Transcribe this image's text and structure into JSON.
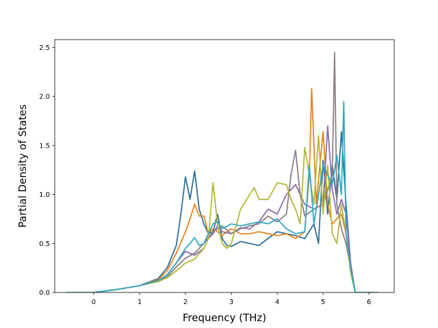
{
  "chart_data": {
    "type": "line",
    "title": "",
    "xlabel": "Frequency (THz)",
    "ylabel": "Partial Density of States",
    "xlim": [
      -0.85,
      6.55
    ],
    "ylim": [
      0.0,
      2.58
    ],
    "xticks": [
      0,
      1,
      2,
      3,
      4,
      5,
      6
    ],
    "xtick_labels": [
      "0",
      "1",
      "2",
      "3",
      "4",
      "5",
      "6"
    ],
    "yticks": [
      0.0,
      0.5,
      1.0,
      1.5,
      2.0,
      2.5
    ],
    "ytick_labels": [
      "0.0",
      "0.5",
      "1.0",
      "1.5",
      "2.0",
      "2.5"
    ],
    "grid": false,
    "legend": "none",
    "series": [
      {
        "color": "#2c6f9b",
        "x": [
          -0.6,
          0,
          0.5,
          1,
          1.4,
          1.6,
          1.8,
          1.9,
          2.0,
          2.1,
          2.2,
          2.3,
          2.4,
          2.5,
          2.6,
          2.7,
          2.8,
          2.9,
          3.0,
          3.2,
          3.4,
          3.6,
          3.8,
          4.0,
          4.2,
          4.4,
          4.6,
          4.8,
          4.9,
          5.0,
          5.1,
          5.2,
          5.3,
          5.4,
          5.5,
          5.6,
          5.7,
          6.2
        ],
        "y": [
          0,
          0,
          0.03,
          0.07,
          0.14,
          0.25,
          0.48,
          0.8,
          1.18,
          0.95,
          1.24,
          0.85,
          0.7,
          0.6,
          0.62,
          0.8,
          0.55,
          0.48,
          0.47,
          0.52,
          0.5,
          0.48,
          0.55,
          0.62,
          0.6,
          0.58,
          0.55,
          0.7,
          0.5,
          1.35,
          0.8,
          1.3,
          0.95,
          1.64,
          0.9,
          0.3,
          0,
          0
        ]
      },
      {
        "color": "#e8821e",
        "x": [
          -0.6,
          0,
          0.5,
          1,
          1.4,
          1.6,
          1.8,
          2.0,
          2.1,
          2.2,
          2.3,
          2.4,
          2.5,
          2.6,
          2.7,
          2.8,
          2.9,
          3.0,
          3.2,
          3.4,
          3.6,
          3.8,
          4.0,
          4.2,
          4.4,
          4.6,
          4.7,
          4.75,
          4.85,
          5.0,
          5.1,
          5.2,
          5.3,
          5.4,
          5.5,
          5.6,
          5.7,
          6.2
        ],
        "y": [
          0,
          0,
          0.03,
          0.07,
          0.13,
          0.22,
          0.4,
          0.62,
          0.75,
          0.9,
          0.78,
          0.78,
          0.6,
          0.65,
          0.62,
          0.58,
          0.62,
          0.65,
          0.6,
          0.6,
          0.62,
          0.6,
          0.58,
          0.6,
          0.55,
          0.62,
          1.2,
          2.08,
          0.9,
          1.64,
          0.9,
          0.7,
          0.75,
          0.8,
          0.6,
          0.3,
          0,
          0
        ]
      },
      {
        "color": "#8c6bb1",
        "x": [
          -0.6,
          0,
          0.5,
          1,
          1.4,
          1.6,
          1.8,
          2.0,
          2.2,
          2.4,
          2.5,
          2.6,
          2.7,
          2.8,
          3.0,
          3.2,
          3.4,
          3.6,
          3.8,
          4.0,
          4.2,
          4.4,
          4.6,
          4.8,
          5.0,
          5.1,
          5.2,
          5.3,
          5.4,
          5.5,
          5.6,
          5.7,
          6.2
        ],
        "y": [
          0,
          0,
          0.03,
          0.07,
          0.12,
          0.18,
          0.3,
          0.42,
          0.38,
          0.45,
          0.55,
          0.6,
          0.68,
          0.62,
          0.6,
          0.66,
          0.65,
          0.72,
          0.85,
          0.8,
          1.0,
          1.1,
          0.9,
          0.85,
          0.9,
          1.7,
          1.05,
          0.8,
          0.95,
          0.8,
          0.3,
          0,
          0
        ]
      },
      {
        "color": "#8a7e82",
        "x": [
          -0.6,
          0,
          0.5,
          1,
          1.4,
          1.6,
          1.8,
          2.0,
          2.2,
          2.4,
          2.6,
          2.8,
          3.0,
          3.2,
          3.4,
          3.6,
          3.8,
          4.0,
          4.2,
          4.3,
          4.4,
          4.5,
          4.6,
          4.8,
          5.0,
          5.2,
          5.25,
          5.3,
          5.4,
          5.5,
          5.6,
          5.7,
          6.2
        ],
        "y": [
          0,
          0,
          0.03,
          0.07,
          0.12,
          0.16,
          0.26,
          0.35,
          0.4,
          0.5,
          0.62,
          0.68,
          0.6,
          0.65,
          0.68,
          0.7,
          0.78,
          0.72,
          0.8,
          1.2,
          1.45,
          1.0,
          0.78,
          0.85,
          0.9,
          1.2,
          2.45,
          0.9,
          0.65,
          0.5,
          0.25,
          0,
          0
        ]
      },
      {
        "color": "#b5b834",
        "x": [
          -0.6,
          0,
          0.5,
          1,
          1.4,
          1.6,
          1.8,
          2.0,
          2.2,
          2.4,
          2.5,
          2.6,
          2.7,
          2.8,
          2.9,
          3.0,
          3.2,
          3.4,
          3.5,
          3.6,
          3.8,
          4.0,
          4.2,
          4.3,
          4.4,
          4.5,
          4.6,
          4.7,
          4.8,
          4.9,
          5.0,
          5.1,
          5.2,
          5.3,
          5.4,
          5.5,
          5.6,
          5.7,
          6.2
        ],
        "y": [
          0,
          0,
          0.03,
          0.07,
          0.11,
          0.15,
          0.22,
          0.3,
          0.34,
          0.45,
          0.55,
          1.12,
          0.7,
          0.5,
          0.45,
          0.5,
          0.85,
          1.0,
          1.07,
          0.95,
          0.95,
          1.12,
          1.1,
          0.95,
          0.85,
          0.7,
          1.48,
          1.2,
          0.9,
          1.6,
          0.8,
          1.3,
          0.6,
          0.5,
          0.9,
          0.6,
          0.2,
          0,
          0
        ]
      },
      {
        "color": "#31a8c4",
        "x": [
          -0.6,
          0,
          0.5,
          1,
          1.4,
          1.6,
          1.8,
          2.0,
          2.1,
          2.2,
          2.3,
          2.4,
          2.5,
          2.6,
          2.7,
          2.8,
          3.0,
          3.2,
          3.4,
          3.6,
          3.8,
          4.0,
          4.2,
          4.4,
          4.6,
          4.7,
          4.8,
          5.0,
          5.2,
          5.3,
          5.4,
          5.45,
          5.5,
          5.6,
          5.7,
          6.2
        ],
        "y": [
          0,
          0,
          0.03,
          0.07,
          0.12,
          0.18,
          0.3,
          0.45,
          0.5,
          0.56,
          0.48,
          0.5,
          0.6,
          0.7,
          0.72,
          0.65,
          0.7,
          0.68,
          0.7,
          0.72,
          0.7,
          0.75,
          0.65,
          0.6,
          0.62,
          1.3,
          0.7,
          1.3,
          1.1,
          1.4,
          1.0,
          1.95,
          0.6,
          0.25,
          0,
          0
        ]
      }
    ]
  }
}
